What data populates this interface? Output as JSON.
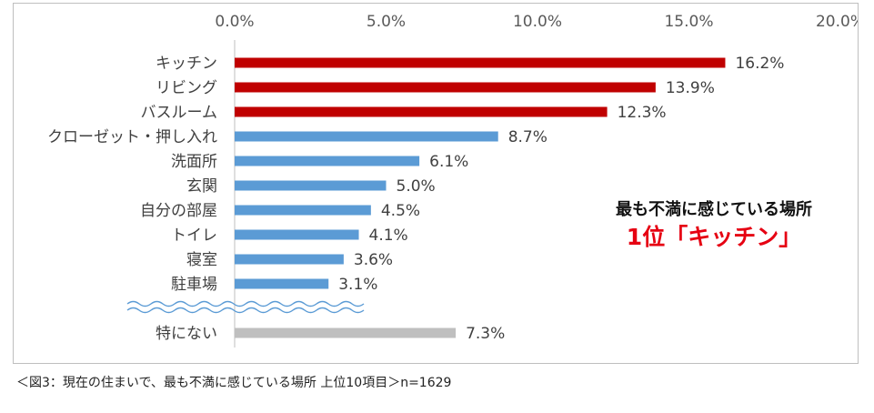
{
  "chart_data": {
    "type": "bar",
    "orientation": "horizontal",
    "categories": [
      "キッチン",
      "リビング",
      "バスルーム",
      "クローゼット・押し入れ",
      "洗面所",
      "玄関",
      "自分の部屋",
      "トイレ",
      "寝室",
      "駐車場",
      "特にない"
    ],
    "values": [
      16.2,
      13.9,
      12.3,
      8.7,
      6.1,
      5.0,
      4.5,
      4.1,
      3.6,
      3.1,
      7.3
    ],
    "value_labels": [
      "16.2%",
      "13.9%",
      "12.3%",
      "8.7%",
      "6.1%",
      "5.0%",
      "4.5%",
      "4.1%",
      "3.6%",
      "3.1%",
      "7.3%"
    ],
    "bar_colors": [
      "#c00000",
      "#c00000",
      "#c00000",
      "#5b9bd5",
      "#5b9bd5",
      "#5b9bd5",
      "#5b9bd5",
      "#5b9bd5",
      "#5b9bd5",
      "#5b9bd5",
      "#bfbfbf"
    ],
    "xlim": [
      0,
      20
    ],
    "xticks": [
      0,
      5,
      10,
      15,
      20
    ],
    "xtick_labels": [
      "0.0%",
      "5.0%",
      "10.0%",
      "15.0%",
      "20.0%"
    ],
    "axis_position": "top",
    "grid": false,
    "break_before_last": true
  },
  "callout": {
    "line1": "最も不満に感じている場所",
    "line2": "1位「キッチン」"
  },
  "caption": "＜図3：現在の住まいで、最も不満に感じている場所 上位10項目＞n=1629"
}
